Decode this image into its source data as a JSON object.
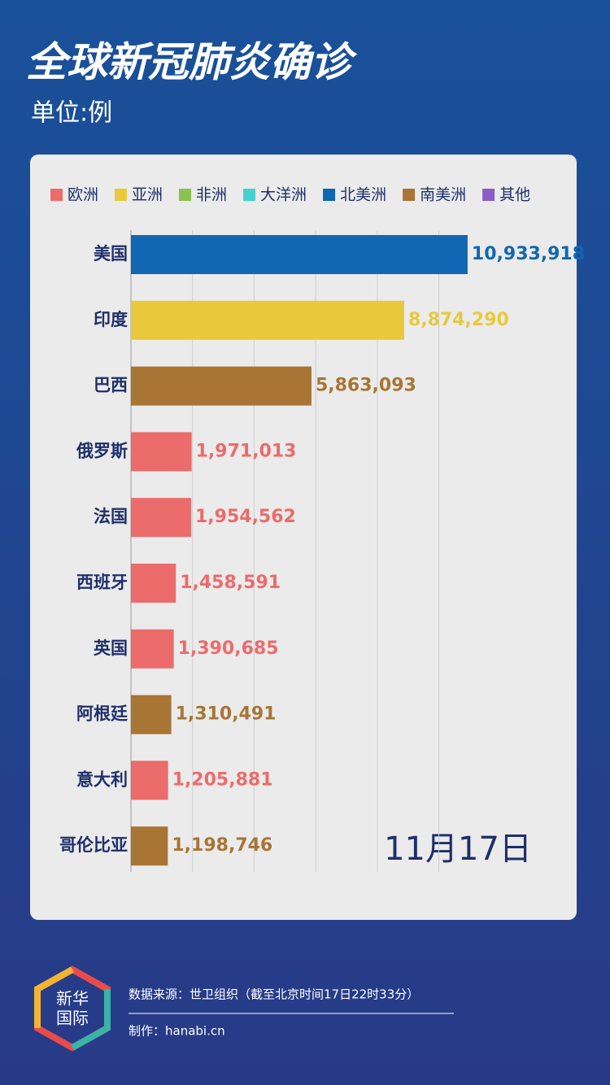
{
  "title": "全球新冠肺炎确诊",
  "subtitle": "单位:例",
  "chart_data": {
    "type": "bar",
    "orientation": "horizontal",
    "categories": [
      "美国",
      "印度",
      "巴西",
      "俄罗斯",
      "法国",
      "西班牙",
      "英国",
      "阿根廷",
      "意大利",
      "哥伦比亚"
    ],
    "series": [
      {
        "name": "欧洲",
        "color": "#ec6b6b",
        "values": [
          null,
          null,
          null,
          1971013,
          1954562,
          1458591,
          1390685,
          null,
          1205881,
          null
        ],
        "value_labels": [
          null,
          null,
          null,
          "1,971,013",
          "1,954,562",
          "1,458,591",
          "1,390,685",
          null,
          "1,205,881",
          null
        ]
      },
      {
        "name": "亚洲",
        "color": "#e9c93a",
        "values": [
          null,
          8874290,
          null,
          null,
          null,
          null,
          null,
          null,
          null,
          null
        ],
        "value_labels": [
          null,
          "8,874,290",
          null,
          null,
          null,
          null,
          null,
          null,
          null,
          null
        ]
      },
      {
        "name": "非洲",
        "color": "#8cc152",
        "values": [
          null,
          null,
          null,
          null,
          null,
          null,
          null,
          null,
          null,
          null
        ],
        "value_labels": [
          null,
          null,
          null,
          null,
          null,
          null,
          null,
          null,
          null,
          null
        ]
      },
      {
        "name": "大洋洲",
        "color": "#48cfcf",
        "values": [
          null,
          null,
          null,
          null,
          null,
          null,
          null,
          null,
          null,
          null
        ],
        "value_labels": [
          null,
          null,
          null,
          null,
          null,
          null,
          null,
          null,
          null,
          null
        ]
      },
      {
        "name": "北美洲",
        "color": "#1167b1",
        "values": [
          10933918,
          null,
          null,
          null,
          null,
          null,
          null,
          null,
          null,
          null
        ],
        "value_labels": [
          "10,933,918",
          null,
          null,
          null,
          null,
          null,
          null,
          null,
          null,
          null
        ]
      },
      {
        "name": "南美洲",
        "color": "#a87535",
        "values": [
          null,
          null,
          5863093,
          null,
          null,
          null,
          null,
          1310491,
          null,
          1198746
        ],
        "value_labels": [
          null,
          null,
          "5,863,093",
          null,
          null,
          null,
          null,
          "1,310,491",
          null,
          "1,198,746"
        ]
      },
      {
        "name": "其他",
        "color": "#8a5cc8",
        "values": [
          null,
          null,
          null,
          null,
          null,
          null,
          null,
          null,
          null,
          null
        ],
        "value_labels": [
          null,
          null,
          null,
          null,
          null,
          null,
          null,
          null,
          null,
          null
        ]
      }
    ],
    "xlim": [
      0,
      14000000
    ],
    "xticks": [
      0,
      2000000,
      4000000,
      6000000,
      8000000,
      10000000
    ],
    "grid": true,
    "annotation": "11月17日"
  },
  "footer": {
    "logo": [
      "新华",
      "国际"
    ],
    "source": "数据来源：世卫组织（截至北京时间17日22时33分）",
    "credit": "制作：hanabi.cn"
  }
}
